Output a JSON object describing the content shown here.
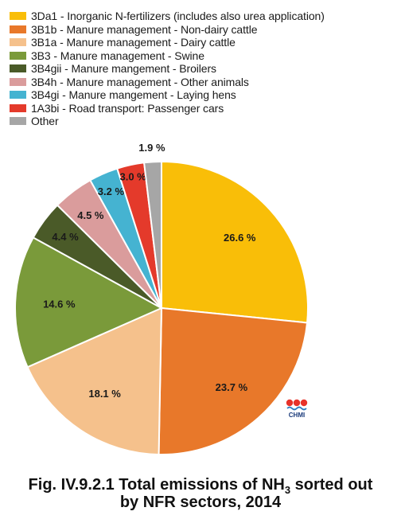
{
  "chart_data": {
    "type": "pie",
    "title_line1_prefix": "Fig. IV.9.2.1  Total emissions of NH",
    "title_sub": "3",
    "title_line1_suffix": " sorted out",
    "title_line2": "by NFR sectors, 2014",
    "slices": [
      {
        "name": "3Da1 - Inorganic N-fertilizers (includes also urea application)",
        "value": 26.6,
        "label": "26.6 %",
        "color": "#F9BE08"
      },
      {
        "name": "3B1b - Manure management - Non-dairy cattle",
        "value": 23.7,
        "label": "23.7 %",
        "color": "#E8782A"
      },
      {
        "name": "3B1a - Manure management - Dairy cattle",
        "value": 18.1,
        "label": "18.1 %",
        "color": "#F5C18C"
      },
      {
        "name": "3B3 - Manure management - Swine",
        "value": 14.6,
        "label": "14.6 %",
        "color": "#7A9A3A"
      },
      {
        "name": "3B4gii - Manure mangement -  Broilers",
        "value": 4.4,
        "label": "4.4 %",
        "color": "#4A5A28"
      },
      {
        "name": "3B4h - Manure management - Other animals",
        "value": 4.5,
        "label": "4.5 %",
        "color": "#DA9C9C"
      },
      {
        "name": "3B4gi - Manure mangement -  Laying hens",
        "value": 3.2,
        "label": "3.2 %",
        "color": "#45B3D1"
      },
      {
        "name": "1A3bi - Road transport: Passenger cars",
        "value": 3.0,
        "label": "3.0 %",
        "color": "#E43A2B"
      },
      {
        "name": "Other",
        "value": 1.9,
        "label": "1.9 %",
        "color": "#A6A6A6"
      }
    ],
    "legend_position": "top-left",
    "start_angle": "12 o'clock, clockwise"
  },
  "logo": {
    "text": "CHMI",
    "name": "chmi-logo"
  }
}
